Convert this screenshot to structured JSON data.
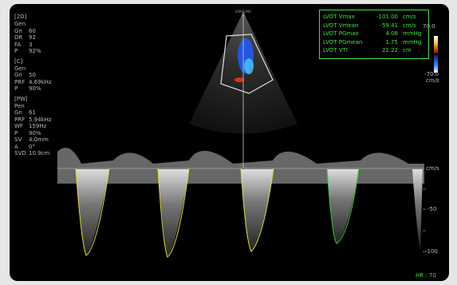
{
  "settings_panel": {
    "groups": [
      {
        "header": "[2D]",
        "rows": [
          [
            "Gen"
          ],
          [
            "Gn",
            "60"
          ],
          [
            "DR",
            "92"
          ],
          [
            "FA",
            "3"
          ],
          [
            "P",
            "92%"
          ]
        ]
      },
      {
        "header": "[C]",
        "rows": [
          [
            "Gen"
          ],
          [
            "Gn",
            "50"
          ],
          [
            "PRF",
            "4.69kHz"
          ],
          [
            "P",
            "90%"
          ]
        ]
      },
      {
        "header": "[PW]",
        "rows": [
          [
            "Pen"
          ],
          [
            "Gn",
            "61"
          ],
          [
            "PRF",
            "5.94kHz"
          ],
          [
            "WF",
            "159Hz"
          ],
          [
            "P",
            "90%"
          ],
          [
            "SV",
            "4.0mm"
          ],
          [
            "A",
            "0°"
          ],
          [
            "SVD",
            "10.9cm"
          ]
        ]
      }
    ]
  },
  "brand": {
    "name": "SAMSUNG",
    "model": "V6"
  },
  "measurements": [
    {
      "label": "LVOT Vmax",
      "value": "-101.00",
      "unit": "cm/s"
    },
    {
      "label": "LVOT Vmean",
      "value": "-59.41",
      "unit": "cm/s"
    },
    {
      "label": "LVOT PGmax",
      "value": "4.08",
      "unit": "mmHg"
    },
    {
      "label": "LVOT PGmean",
      "value": "1.75",
      "unit": "mmHg"
    },
    {
      "label": "LVOT VTI",
      "value": "21.22",
      "unit": "cm"
    }
  ],
  "color_bar": {
    "max": "70.0",
    "min": "-70.0",
    "unit": "cm/s"
  },
  "doppler_scale": {
    "unit": "cm/s",
    "labels": [
      "-50",
      "-100"
    ]
  },
  "heart_rate": "HR : 70"
}
